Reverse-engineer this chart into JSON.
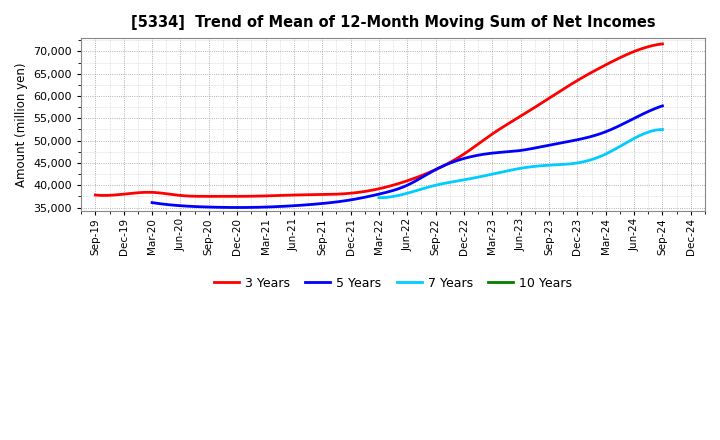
{
  "title": "[5334]  Trend of Mean of 12-Month Moving Sum of Net Incomes",
  "ylabel": "Amount (million yen)",
  "background_color": "#ffffff",
  "series": {
    "3 Years": {
      "color": "#ff0000",
      "x": [
        "Sep-19",
        "Dec-19",
        "Mar-20",
        "Jun-20",
        "Sep-20",
        "Dec-20",
        "Mar-21",
        "Jun-21",
        "Sep-21",
        "Dec-21",
        "Mar-22",
        "Jun-22",
        "Sep-22",
        "Dec-22",
        "Mar-23",
        "Jun-23",
        "Sep-23",
        "Dec-23",
        "Mar-24",
        "Jun-24",
        "Sep-24"
      ],
      "y": [
        37800,
        38000,
        38400,
        37700,
        37500,
        37500,
        37600,
        37800,
        37900,
        38200,
        39200,
        41000,
        43500,
        47000,
        51500,
        55500,
        59500,
        63500,
        67000,
        70000,
        71700
      ]
    },
    "5 Years": {
      "color": "#0000ff",
      "x": [
        "Mar-20",
        "Jun-20",
        "Sep-20",
        "Dec-20",
        "Mar-21",
        "Jun-21",
        "Sep-21",
        "Dec-21",
        "Mar-22",
        "Jun-22",
        "Sep-22",
        "Dec-22",
        "Mar-23",
        "Jun-23",
        "Sep-23",
        "Dec-23",
        "Mar-24",
        "Jun-24",
        "Sep-24"
      ],
      "y": [
        36100,
        35400,
        35100,
        35000,
        35100,
        35400,
        35900,
        36700,
        38000,
        40000,
        43500,
        46000,
        47200,
        47800,
        49000,
        50200,
        52000,
        55000,
        57800
      ]
    },
    "7 Years": {
      "color": "#00ccff",
      "x": [
        "Mar-22",
        "Jun-22",
        "Sep-22",
        "Dec-22",
        "Mar-23",
        "Jun-23",
        "Sep-23",
        "Dec-23",
        "Mar-24",
        "Jun-24",
        "Sep-24"
      ],
      "y": [
        37200,
        38200,
        40000,
        41200,
        42500,
        43800,
        44500,
        45000,
        47000,
        50500,
        52500
      ]
    },
    "10 Years": {
      "color": "#008000",
      "x": [],
      "y": []
    }
  },
  "xticks": [
    "Sep-19",
    "Dec-19",
    "Mar-20",
    "Jun-20",
    "Sep-20",
    "Dec-20",
    "Mar-21",
    "Jun-21",
    "Sep-21",
    "Dec-21",
    "Mar-22",
    "Jun-22",
    "Sep-22",
    "Dec-22",
    "Mar-23",
    "Jun-23",
    "Sep-23",
    "Dec-23",
    "Mar-24",
    "Jun-24",
    "Sep-24",
    "Dec-24"
  ],
  "ylim": [
    34200,
    73000
  ],
  "yticks": [
    35000,
    40000,
    45000,
    50000,
    55000,
    60000,
    65000,
    70000
  ],
  "legend_labels": [
    "3 Years",
    "5 Years",
    "7 Years",
    "10 Years"
  ],
  "legend_colors": [
    "#ff0000",
    "#0000ff",
    "#00ccff",
    "#008000"
  ]
}
